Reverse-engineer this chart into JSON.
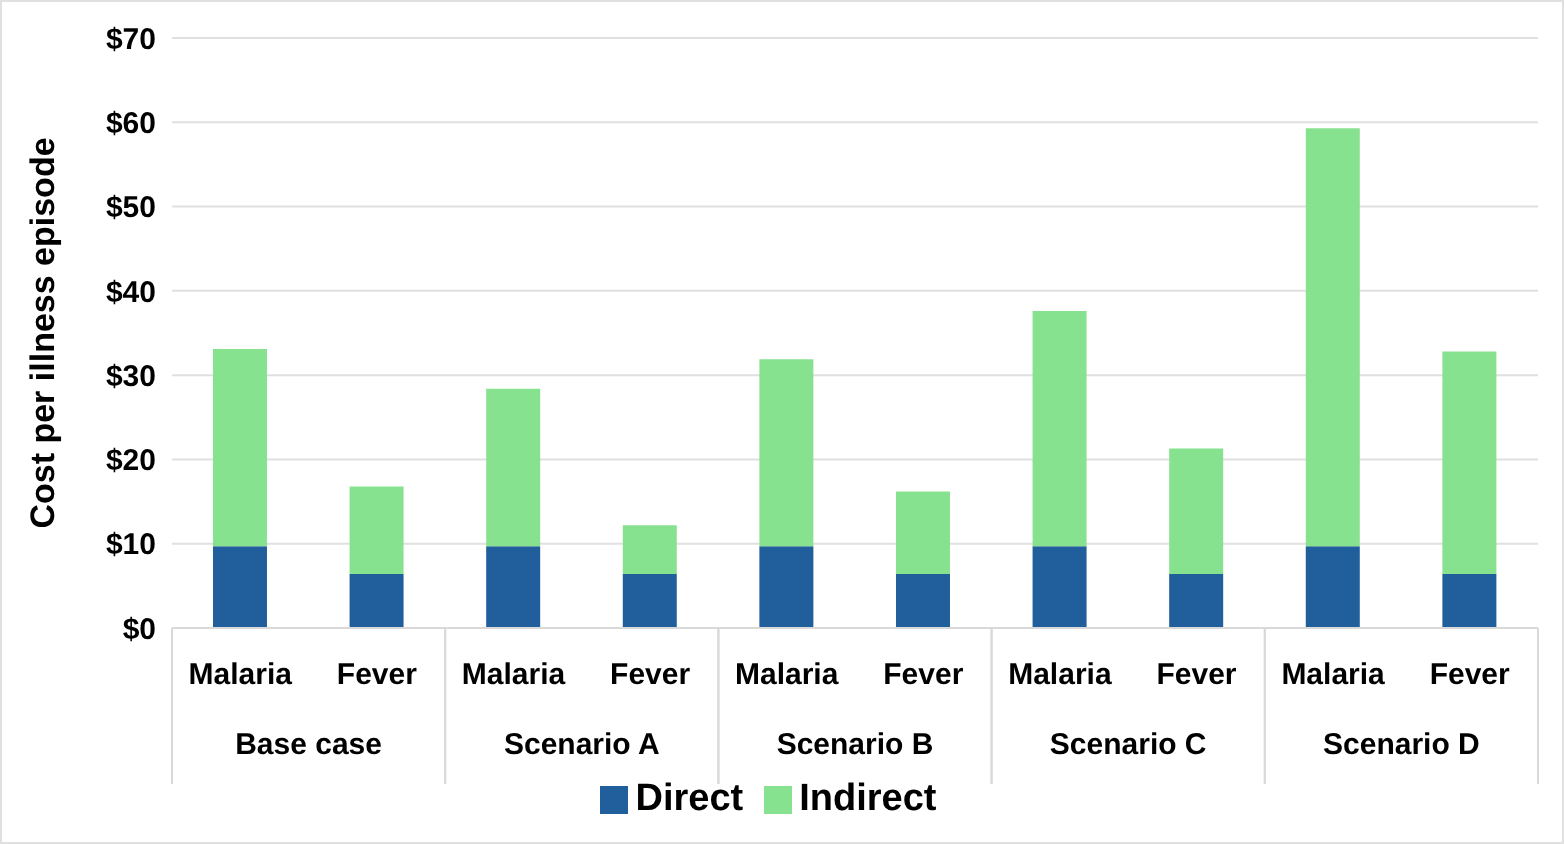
{
  "chart_data": {
    "type": "bar",
    "stacked": true,
    "ylabel": "Cost per illness episode",
    "categories": [
      "Malaria",
      "Fever",
      "Malaria",
      "Fever",
      "Malaria",
      "Fever",
      "Malaria",
      "Fever",
      "Malaria",
      "Fever"
    ],
    "annotations": [
      "Base case",
      "Scenario A",
      "Scenario B",
      "Scenario C",
      "Scenario D"
    ],
    "series": [
      {
        "name": "Direct",
        "color": "#205f9b",
        "values": [
          9.7,
          6.4,
          9.7,
          6.4,
          9.7,
          6.4,
          9.7,
          6.4,
          9.7,
          6.4
        ]
      },
      {
        "name": "Indirect",
        "color": "#87e28f",
        "values": [
          23.4,
          10.4,
          18.7,
          5.8,
          22.2,
          9.8,
          27.9,
          14.9,
          49.6,
          26.4
        ]
      }
    ],
    "ylim": [
      0,
      70
    ],
    "yticks": [
      {
        "value": 0,
        "label": "$0"
      },
      {
        "value": 10,
        "label": "$10"
      },
      {
        "value": 20,
        "label": "$20"
      },
      {
        "value": 30,
        "label": "$30"
      },
      {
        "value": 40,
        "label": "$40"
      },
      {
        "value": 50,
        "label": "$50"
      },
      {
        "value": 60,
        "label": "$60"
      },
      {
        "value": 70,
        "label": "$70"
      }
    ],
    "grid": "y",
    "legend": "bottom"
  }
}
